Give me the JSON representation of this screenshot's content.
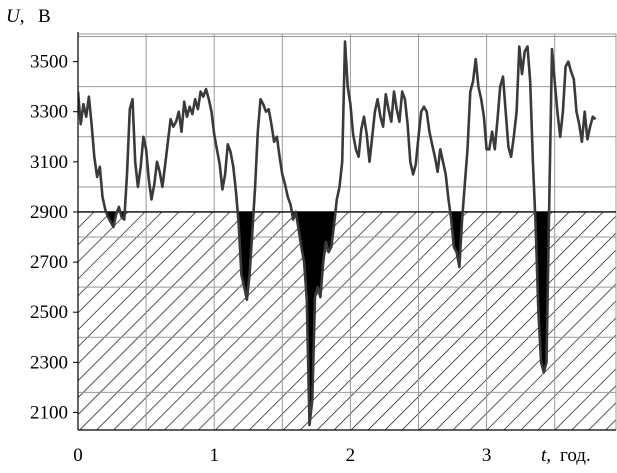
{
  "chart_data": {
    "type": "line",
    "title": "",
    "ylabel_symbol": "U,",
    "ylabel_unit": "В",
    "xlabel_symbol": "t,",
    "xlabel_unit": "год.",
    "xlim": [
      0,
      3.95
    ],
    "ylim": [
      2030,
      3610
    ],
    "x_ticks": [
      "0",
      "1",
      "2",
      "3"
    ],
    "x_tick_values": [
      0,
      1,
      2,
      3
    ],
    "y_ticks": [
      "2100",
      "2300",
      "2500",
      "2700",
      "2900",
      "3100",
      "3300",
      "3500"
    ],
    "y_tick_values": [
      2100,
      2300,
      2500,
      2700,
      2900,
      3100,
      3300,
      3500
    ],
    "x_grid_values": [
      0.5,
      1,
      1.5,
      2,
      2.5,
      3,
      3.5
    ],
    "y_grid_values": [
      2180,
      2400,
      2600,
      2800,
      3000,
      3200,
      3400,
      3600
    ],
    "hatched_zone": [
      2030,
      2900
    ],
    "threshold": 2900,
    "grid": true,
    "series": [
      {
        "color": "#3a3a3a",
        "points": [
          [
            0.0,
            3380
          ],
          [
            0.02,
            3250
          ],
          [
            0.04,
            3330
          ],
          [
            0.06,
            3280
          ],
          [
            0.08,
            3360
          ],
          [
            0.1,
            3250
          ],
          [
            0.12,
            3120
          ],
          [
            0.14,
            3040
          ],
          [
            0.16,
            3080
          ],
          [
            0.18,
            2960
          ],
          [
            0.2,
            2910
          ],
          [
            0.22,
            2880
          ],
          [
            0.24,
            2860
          ],
          [
            0.26,
            2840
          ],
          [
            0.28,
            2890
          ],
          [
            0.3,
            2920
          ],
          [
            0.32,
            2880
          ],
          [
            0.34,
            2870
          ],
          [
            0.36,
            3050
          ],
          [
            0.38,
            3310
          ],
          [
            0.4,
            3350
          ],
          [
            0.42,
            3100
          ],
          [
            0.44,
            3000
          ],
          [
            0.46,
            3080
          ],
          [
            0.48,
            3200
          ],
          [
            0.5,
            3150
          ],
          [
            0.52,
            3030
          ],
          [
            0.54,
            2950
          ],
          [
            0.56,
            3010
          ],
          [
            0.58,
            3100
          ],
          [
            0.6,
            3060
          ],
          [
            0.62,
            3000
          ],
          [
            0.64,
            3090
          ],
          [
            0.66,
            3180
          ],
          [
            0.68,
            3270
          ],
          [
            0.7,
            3240
          ],
          [
            0.72,
            3260
          ],
          [
            0.74,
            3300
          ],
          [
            0.76,
            3220
          ],
          [
            0.78,
            3340
          ],
          [
            0.8,
            3280
          ],
          [
            0.82,
            3320
          ],
          [
            0.84,
            3290
          ],
          [
            0.86,
            3350
          ],
          [
            0.88,
            3310
          ],
          [
            0.9,
            3380
          ],
          [
            0.92,
            3360
          ],
          [
            0.94,
            3390
          ],
          [
            0.96,
            3350
          ],
          [
            0.98,
            3300
          ],
          [
            1.0,
            3210
          ],
          [
            1.02,
            3150
          ],
          [
            1.04,
            3090
          ],
          [
            1.06,
            2990
          ],
          [
            1.08,
            3050
          ],
          [
            1.1,
            3170
          ],
          [
            1.12,
            3140
          ],
          [
            1.14,
            3080
          ],
          [
            1.16,
            2980
          ],
          [
            1.18,
            2850
          ],
          [
            1.2,
            2650
          ],
          [
            1.22,
            2600
          ],
          [
            1.24,
            2550
          ],
          [
            1.26,
            2650
          ],
          [
            1.28,
            2820
          ],
          [
            1.3,
            3000
          ],
          [
            1.32,
            3220
          ],
          [
            1.34,
            3350
          ],
          [
            1.36,
            3330
          ],
          [
            1.38,
            3300
          ],
          [
            1.4,
            3310
          ],
          [
            1.42,
            3250
          ],
          [
            1.44,
            3180
          ],
          [
            1.46,
            3200
          ],
          [
            1.48,
            3120
          ],
          [
            1.5,
            3050
          ],
          [
            1.52,
            3010
          ],
          [
            1.54,
            2960
          ],
          [
            1.56,
            2930
          ],
          [
            1.58,
            2870
          ],
          [
            1.6,
            2900
          ],
          [
            1.62,
            2830
          ],
          [
            1.64,
            2760
          ],
          [
            1.66,
            2700
          ],
          [
            1.68,
            2550
          ],
          [
            1.7,
            2050
          ],
          [
            1.72,
            2150
          ],
          [
            1.74,
            2560
          ],
          [
            1.76,
            2600
          ],
          [
            1.78,
            2560
          ],
          [
            1.8,
            2700
          ],
          [
            1.82,
            2780
          ],
          [
            1.84,
            2740
          ],
          [
            1.86,
            2760
          ],
          [
            1.88,
            2850
          ],
          [
            1.9,
            2950
          ],
          [
            1.92,
            3000
          ],
          [
            1.94,
            3100
          ],
          [
            1.96,
            3580
          ],
          [
            1.98,
            3400
          ],
          [
            2.0,
            3330
          ],
          [
            2.02,
            3210
          ],
          [
            2.04,
            3150
          ],
          [
            2.06,
            3120
          ],
          [
            2.08,
            3230
          ],
          [
            2.1,
            3280
          ],
          [
            2.12,
            3210
          ],
          [
            2.14,
            3100
          ],
          [
            2.16,
            3200
          ],
          [
            2.18,
            3300
          ],
          [
            2.2,
            3350
          ],
          [
            2.22,
            3280
          ],
          [
            2.24,
            3240
          ],
          [
            2.26,
            3370
          ],
          [
            2.28,
            3310
          ],
          [
            2.3,
            3260
          ],
          [
            2.32,
            3380
          ],
          [
            2.34,
            3310
          ],
          [
            2.36,
            3260
          ],
          [
            2.38,
            3380
          ],
          [
            2.4,
            3350
          ],
          [
            2.42,
            3250
          ],
          [
            2.44,
            3100
          ],
          [
            2.46,
            3050
          ],
          [
            2.48,
            3090
          ],
          [
            2.5,
            3200
          ],
          [
            2.52,
            3300
          ],
          [
            2.54,
            3320
          ],
          [
            2.56,
            3300
          ],
          [
            2.58,
            3220
          ],
          [
            2.6,
            3170
          ],
          [
            2.62,
            3120
          ],
          [
            2.64,
            3060
          ],
          [
            2.66,
            3150
          ],
          [
            2.68,
            3100
          ],
          [
            2.7,
            3050
          ],
          [
            2.72,
            2950
          ],
          [
            2.74,
            2870
          ],
          [
            2.76,
            2760
          ],
          [
            2.78,
            2740
          ],
          [
            2.8,
            2680
          ],
          [
            2.82,
            2870
          ],
          [
            2.84,
            3010
          ],
          [
            2.86,
            3150
          ],
          [
            2.88,
            3380
          ],
          [
            2.9,
            3420
          ],
          [
            2.92,
            3510
          ],
          [
            2.94,
            3400
          ],
          [
            2.96,
            3350
          ],
          [
            2.98,
            3280
          ],
          [
            3.0,
            3150
          ],
          [
            3.02,
            3150
          ],
          [
            3.04,
            3220
          ],
          [
            3.06,
            3150
          ],
          [
            3.08,
            3270
          ],
          [
            3.1,
            3400
          ],
          [
            3.12,
            3440
          ],
          [
            3.14,
            3300
          ],
          [
            3.16,
            3160
          ],
          [
            3.18,
            3120
          ],
          [
            3.2,
            3200
          ],
          [
            3.22,
            3300
          ],
          [
            3.24,
            3560
          ],
          [
            3.26,
            3450
          ],
          [
            3.28,
            3540
          ],
          [
            3.3,
            3560
          ],
          [
            3.32,
            3420
          ],
          [
            3.34,
            3100
          ],
          [
            3.36,
            2850
          ],
          [
            3.38,
            2500
          ],
          [
            3.4,
            2300
          ],
          [
            3.42,
            2260
          ],
          [
            3.44,
            2300
          ],
          [
            3.46,
            2950
          ],
          [
            3.48,
            3550
          ],
          [
            3.5,
            3420
          ],
          [
            3.52,
            3300
          ],
          [
            3.54,
            3200
          ],
          [
            3.56,
            3300
          ],
          [
            3.58,
            3480
          ],
          [
            3.6,
            3500
          ],
          [
            3.62,
            3460
          ],
          [
            3.64,
            3430
          ],
          [
            3.66,
            3300
          ],
          [
            3.68,
            3250
          ],
          [
            3.7,
            3180
          ],
          [
            3.72,
            3300
          ],
          [
            3.74,
            3190
          ],
          [
            3.76,
            3240
          ],
          [
            3.78,
            3280
          ],
          [
            3.8,
            3270
          ]
        ]
      }
    ]
  }
}
